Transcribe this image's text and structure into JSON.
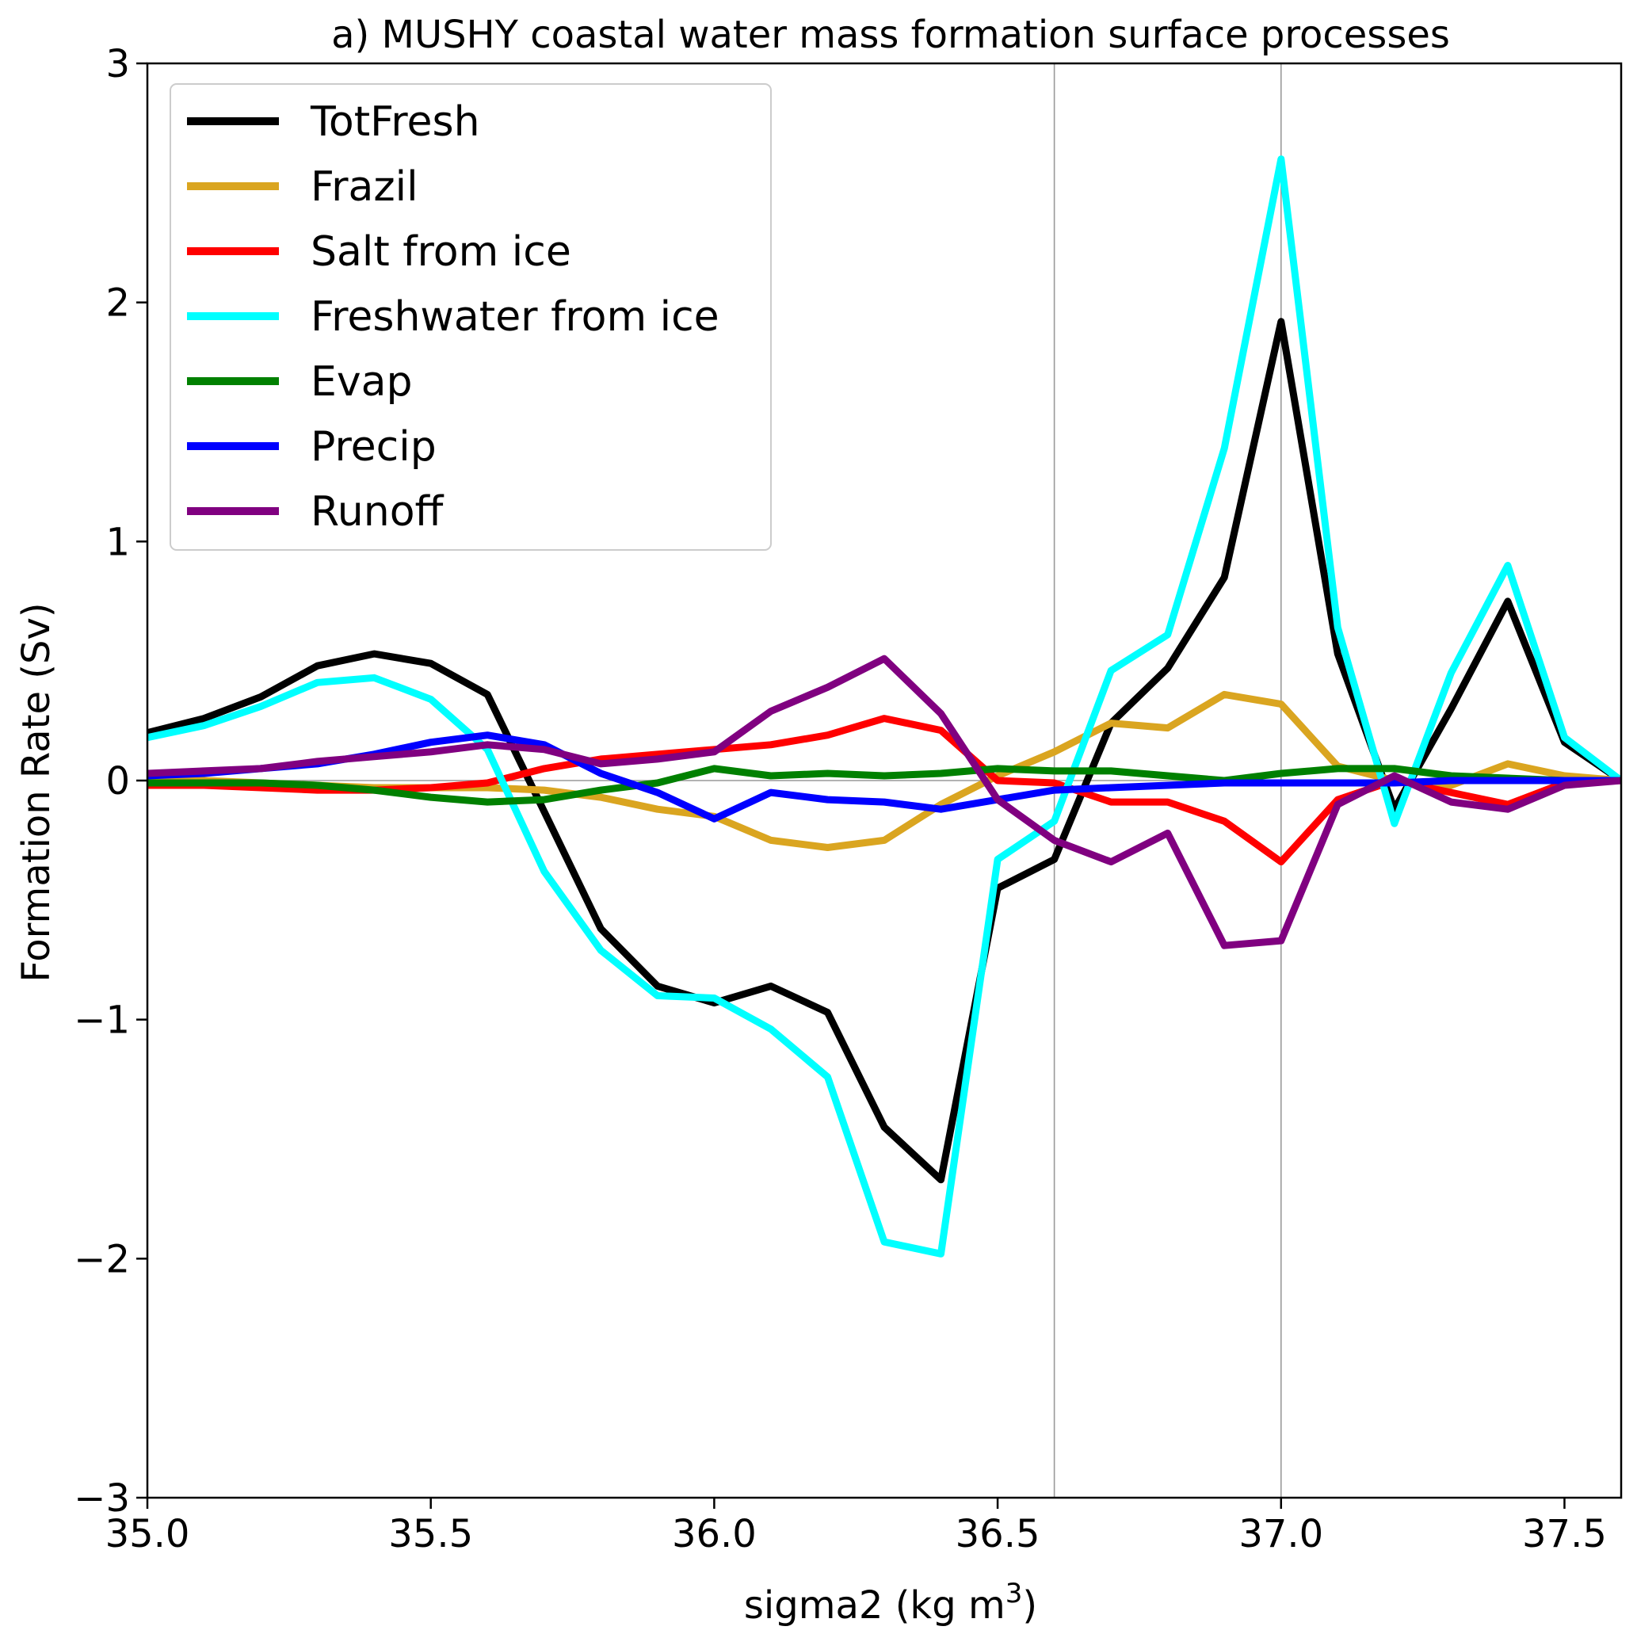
{
  "chart_data": {
    "type": "line",
    "title": "a) MUSHY coastal water mass formation surface processes",
    "xlabel": "sigma2 (kg m",
    "xlabel_sup": "3",
    "xlabel_end": ")",
    "ylabel": "Formation Rate (Sv)",
    "xlim": [
      35.0,
      37.6
    ],
    "ylim": [
      -3,
      3
    ],
    "xticks": [
      35.0,
      35.5,
      36.0,
      36.5,
      37.0,
      37.5
    ],
    "xtick_labels": [
      "35.0",
      "35.5",
      "36.0",
      "36.5",
      "37.0",
      "37.5"
    ],
    "yticks": [
      -3,
      -2,
      -1,
      0,
      1,
      2,
      3
    ],
    "ytick_labels": [
      "−3",
      "−2",
      "−1",
      "0",
      "1",
      "2",
      "3"
    ],
    "vlines": [
      36.6,
      37.0
    ],
    "hline": 0,
    "grid": false,
    "legend_position": "upper-left",
    "x": [
      35.0,
      35.1,
      35.2,
      35.3,
      35.4,
      35.5,
      35.6,
      35.7,
      35.8,
      35.9,
      36.0,
      36.1,
      36.2,
      36.3,
      36.4,
      36.5,
      36.6,
      36.7,
      36.8,
      36.9,
      37.0,
      37.1,
      37.2,
      37.3,
      37.4,
      37.5,
      37.6
    ],
    "series": [
      {
        "name": "TotFresh",
        "color": "#000000",
        "values": [
          0.2,
          0.26,
          0.35,
          0.48,
          0.53,
          0.49,
          0.36,
          -0.13,
          -0.62,
          -0.86,
          -0.93,
          -0.86,
          -0.97,
          -1.45,
          -1.67,
          -0.45,
          -0.33,
          0.24,
          0.47,
          0.85,
          1.92,
          0.53,
          -0.12,
          0.3,
          0.75,
          0.16,
          0.0
        ]
      },
      {
        "name": "Frazil",
        "color": "#daa520",
        "values": [
          0.0,
          0.0,
          -0.01,
          -0.02,
          -0.03,
          -0.03,
          -0.03,
          -0.04,
          -0.07,
          -0.12,
          -0.15,
          -0.25,
          -0.28,
          -0.25,
          -0.1,
          0.02,
          0.12,
          0.24,
          0.22,
          0.36,
          0.32,
          0.06,
          0.0,
          -0.02,
          0.07,
          0.02,
          0.0
        ]
      },
      {
        "name": "Salt from ice",
        "color": "#ff0000",
        "values": [
          -0.02,
          -0.02,
          -0.03,
          -0.04,
          -0.04,
          -0.03,
          -0.01,
          0.05,
          0.09,
          0.11,
          0.13,
          0.15,
          0.19,
          0.26,
          0.21,
          0.0,
          -0.01,
          -0.09,
          -0.09,
          -0.17,
          -0.34,
          -0.08,
          0.0,
          -0.05,
          -0.1,
          -0.01,
          0.0
        ]
      },
      {
        "name": "Freshwater from ice",
        "color": "#00ffff",
        "values": [
          0.18,
          0.23,
          0.31,
          0.41,
          0.43,
          0.34,
          0.13,
          -0.38,
          -0.71,
          -0.9,
          -0.91,
          -1.04,
          -1.24,
          -1.93,
          -1.98,
          -0.33,
          -0.17,
          0.46,
          0.61,
          1.39,
          2.6,
          0.64,
          -0.18,
          0.45,
          0.9,
          0.18,
          0.0
        ]
      },
      {
        "name": "Evap",
        "color": "#008000",
        "values": [
          -0.01,
          -0.01,
          -0.01,
          -0.02,
          -0.04,
          -0.07,
          -0.09,
          -0.08,
          -0.04,
          -0.01,
          0.05,
          0.02,
          0.03,
          0.02,
          0.03,
          0.05,
          0.04,
          0.04,
          0.02,
          0.0,
          0.03,
          0.05,
          0.05,
          0.02,
          0.01,
          0.0,
          0.0
        ]
      },
      {
        "name": "Precip",
        "color": "#0000ff",
        "values": [
          0.02,
          0.03,
          0.05,
          0.07,
          0.11,
          0.16,
          0.19,
          0.15,
          0.03,
          -0.05,
          -0.16,
          -0.05,
          -0.08,
          -0.09,
          -0.12,
          -0.08,
          -0.04,
          -0.03,
          -0.02,
          -0.01,
          -0.01,
          -0.01,
          -0.01,
          0.0,
          0.0,
          0.0,
          0.0
        ]
      },
      {
        "name": "Runoff",
        "color": "#800080",
        "values": [
          0.03,
          0.04,
          0.05,
          0.08,
          0.1,
          0.12,
          0.15,
          0.13,
          0.07,
          0.09,
          0.12,
          0.29,
          0.39,
          0.51,
          0.28,
          -0.08,
          -0.25,
          -0.34,
          -0.22,
          -0.69,
          -0.67,
          -0.1,
          0.02,
          -0.09,
          -0.12,
          -0.02,
          0.0
        ]
      }
    ]
  }
}
